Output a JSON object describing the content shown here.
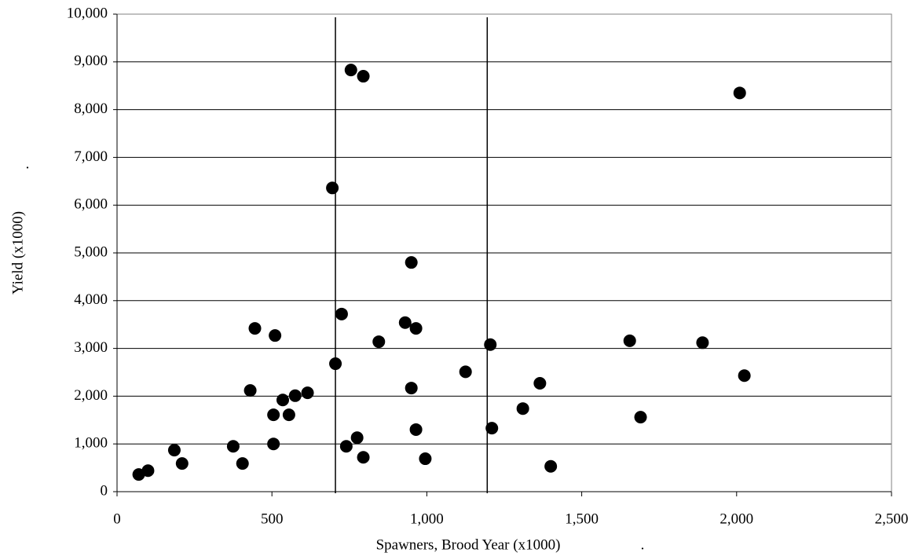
{
  "chart_data": {
    "type": "scatter",
    "x_label": "Spawners, Brood Year (x1000)",
    "x_label_suffix": ".",
    "y_label": "Yield (x1000)",
    "y_label_suffix": ".",
    "color": "#000000",
    "xlim": [
      0,
      2500
    ],
    "xticks": [
      0,
      {
        "value": 500,
        "label": "500"
      },
      {
        "value": 1000,
        "label": "1,000"
      },
      {
        "value": 1500,
        "label": "1,500"
      },
      {
        "value": 2000,
        "label": "2,000"
      },
      {
        "value": 2500,
        "label": "2,500"
      }
    ],
    "ylim": [
      0,
      10000
    ],
    "yticks": [
      0,
      {
        "value": 1000,
        "label": "1,000"
      },
      {
        "value": 2000,
        "label": "2,000"
      },
      {
        "value": 3000,
        "label": "3,000"
      },
      {
        "value": 4000,
        "label": "4,000"
      },
      {
        "value": 5000,
        "label": "5,000"
      },
      {
        "value": 6000,
        "label": "6,000"
      },
      {
        "value": 7000,
        "label": "7,000"
      },
      {
        "value": 8000,
        "label": "8,000"
      },
      {
        "value": 9000,
        "label": "9,000"
      },
      {
        "value": 10000,
        "label": "10,000"
      }
    ],
    "grid": true,
    "vlines": [
      705,
      1195
    ],
    "x": [
      70,
      100,
      185,
      210,
      375,
      405,
      430,
      445,
      505,
      505,
      510,
      535,
      555,
      575,
      615,
      695,
      705,
      725,
      740,
      755,
      775,
      795,
      795,
      845,
      930,
      950,
      950,
      965,
      965,
      995,
      1125,
      1205,
      1210,
      1310,
      1365,
      1400,
      1655,
      1690,
      1890,
      2010,
      2025
    ],
    "values": [
      360,
      440,
      870,
      590,
      950,
      590,
      2120,
      3420,
      1610,
      1000,
      3270,
      1920,
      1610,
      2010,
      2070,
      6360,
      2680,
      3720,
      950,
      8830,
      1130,
      8700,
      720,
      3140,
      3540,
      2170,
      4800,
      3420,
      1300,
      690,
      2510,
      3080,
      1330,
      1740,
      2270,
      530,
      3160,
      1560,
      3120,
      8350,
      2430
    ]
  }
}
